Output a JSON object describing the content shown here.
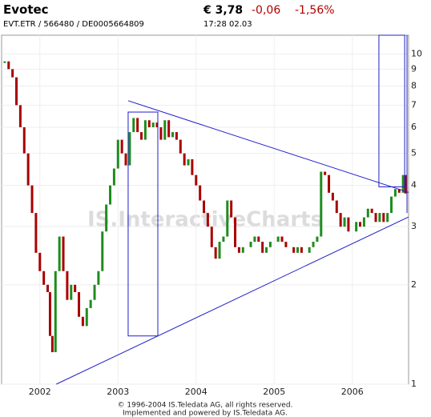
{
  "header": {
    "name": "Evotec",
    "price": "€ 3,78",
    "change": "-0,06",
    "change_pct": "-1,56%",
    "ids": "EVT.ETR  /  566480  /  DE0005664809",
    "time": "17:28   02.03"
  },
  "footer": {
    "line1": "© 1996-2004 IS.Teledata AG, all rights reserved.",
    "line2": "Implemented and powered by IS.Teledata AG."
  },
  "chart_data": {
    "type": "line",
    "watermark": "IS.InteractiveCharts",
    "log_scale": true,
    "grid": true,
    "x": [
      2001.55,
      2001.6,
      2001.65,
      2001.7,
      2001.75,
      2001.8,
      2001.85,
      2001.9,
      2001.95,
      2002.0,
      2002.05,
      2002.1,
      2002.13,
      2002.16,
      2002.2,
      2002.25,
      2002.3,
      2002.35,
      2002.4,
      2002.45,
      2002.5,
      2002.55,
      2002.6,
      2002.65,
      2002.7,
      2002.75,
      2002.8,
      2002.85,
      2002.9,
      2002.95,
      2003.0,
      2003.05,
      2003.1,
      2003.15,
      2003.2,
      2003.25,
      2003.3,
      2003.35,
      2003.4,
      2003.45,
      2003.5,
      2003.55,
      2003.6,
      2003.65,
      2003.7,
      2003.75,
      2003.8,
      2003.85,
      2003.9,
      2003.95,
      2004.0,
      2004.05,
      2004.1,
      2004.15,
      2004.2,
      2004.25,
      2004.3,
      2004.35,
      2004.4,
      2004.45,
      2004.5,
      2004.55,
      2004.6,
      2004.65,
      2004.7,
      2004.75,
      2004.8,
      2004.85,
      2004.9,
      2004.95,
      2005.0,
      2005.05,
      2005.1,
      2005.15,
      2005.2,
      2005.25,
      2005.3,
      2005.35,
      2005.4,
      2005.45,
      2005.5,
      2005.55,
      2005.6,
      2005.65,
      2005.7,
      2005.75,
      2005.8,
      2005.85,
      2005.9,
      2005.95,
      2006.0,
      2006.05,
      2006.1,
      2006.15,
      2006.2,
      2006.25,
      2006.3,
      2006.35,
      2006.4,
      2006.45,
      2006.5,
      2006.55,
      2006.6,
      2006.65,
      2006.68
    ],
    "series": [
      {
        "color_up": "#1e8c1e",
        "color_down": "#a80000",
        "values": [
          9.5,
          9.0,
          8.5,
          7.0,
          6.0,
          5.0,
          4.0,
          3.3,
          2.5,
          2.2,
          2.0,
          1.9,
          1.4,
          1.25,
          2.2,
          2.8,
          2.2,
          1.8,
          2.0,
          1.9,
          1.6,
          1.5,
          1.7,
          1.8,
          2.0,
          2.2,
          2.9,
          3.5,
          4.0,
          4.5,
          5.5,
          5.0,
          4.6,
          5.8,
          6.4,
          5.8,
          5.5,
          6.3,
          6.0,
          6.2,
          6.0,
          5.5,
          6.3,
          5.6,
          5.8,
          5.5,
          5.0,
          4.6,
          4.8,
          4.3,
          4.0,
          3.6,
          3.3,
          3.0,
          2.6,
          2.4,
          2.7,
          2.8,
          3.6,
          3.2,
          2.6,
          2.5,
          2.6,
          2.6,
          2.7,
          2.8,
          2.7,
          2.5,
          2.6,
          2.7,
          2.7,
          2.8,
          2.7,
          2.6,
          2.6,
          2.5,
          2.6,
          2.5,
          2.5,
          2.6,
          2.7,
          2.8,
          4.4,
          4.3,
          3.8,
          3.6,
          3.3,
          3.0,
          3.2,
          2.9,
          2.9,
          3.1,
          3.0,
          3.2,
          3.4,
          3.3,
          3.1,
          3.3,
          3.1,
          3.3,
          3.7,
          3.9,
          3.8,
          4.3,
          3.78
        ]
      }
    ],
    "drawings": {
      "color": "#2020c8",
      "lines": [
        {
          "x": [
            2003.13,
            2006.72
          ],
          "y": [
            7.22,
            3.81
          ]
        },
        {
          "x": [
            2002.21,
            2006.72
          ],
          "y": [
            1,
            3.21
          ]
        },
        {
          "x": [
            2006.7,
            2006.7
          ],
          "y": [
            11.4,
            3.3
          ]
        }
      ],
      "rects": [
        {
          "x": [
            2003.13,
            2003.51
          ],
          "y": [
            1.4,
            6.67
          ]
        },
        {
          "x": [
            2006.34,
            2006.67
          ],
          "y": [
            3.96,
            11.4
          ]
        }
      ]
    },
    "xlim": [
      2001.51,
      2006.72
    ],
    "xticks": [
      2002,
      2003,
      2004,
      2005,
      2006
    ],
    "ylim": [
      1,
      11.4
    ],
    "yticks": [
      1,
      2,
      3,
      4,
      5,
      6,
      7,
      8,
      9,
      10
    ]
  }
}
